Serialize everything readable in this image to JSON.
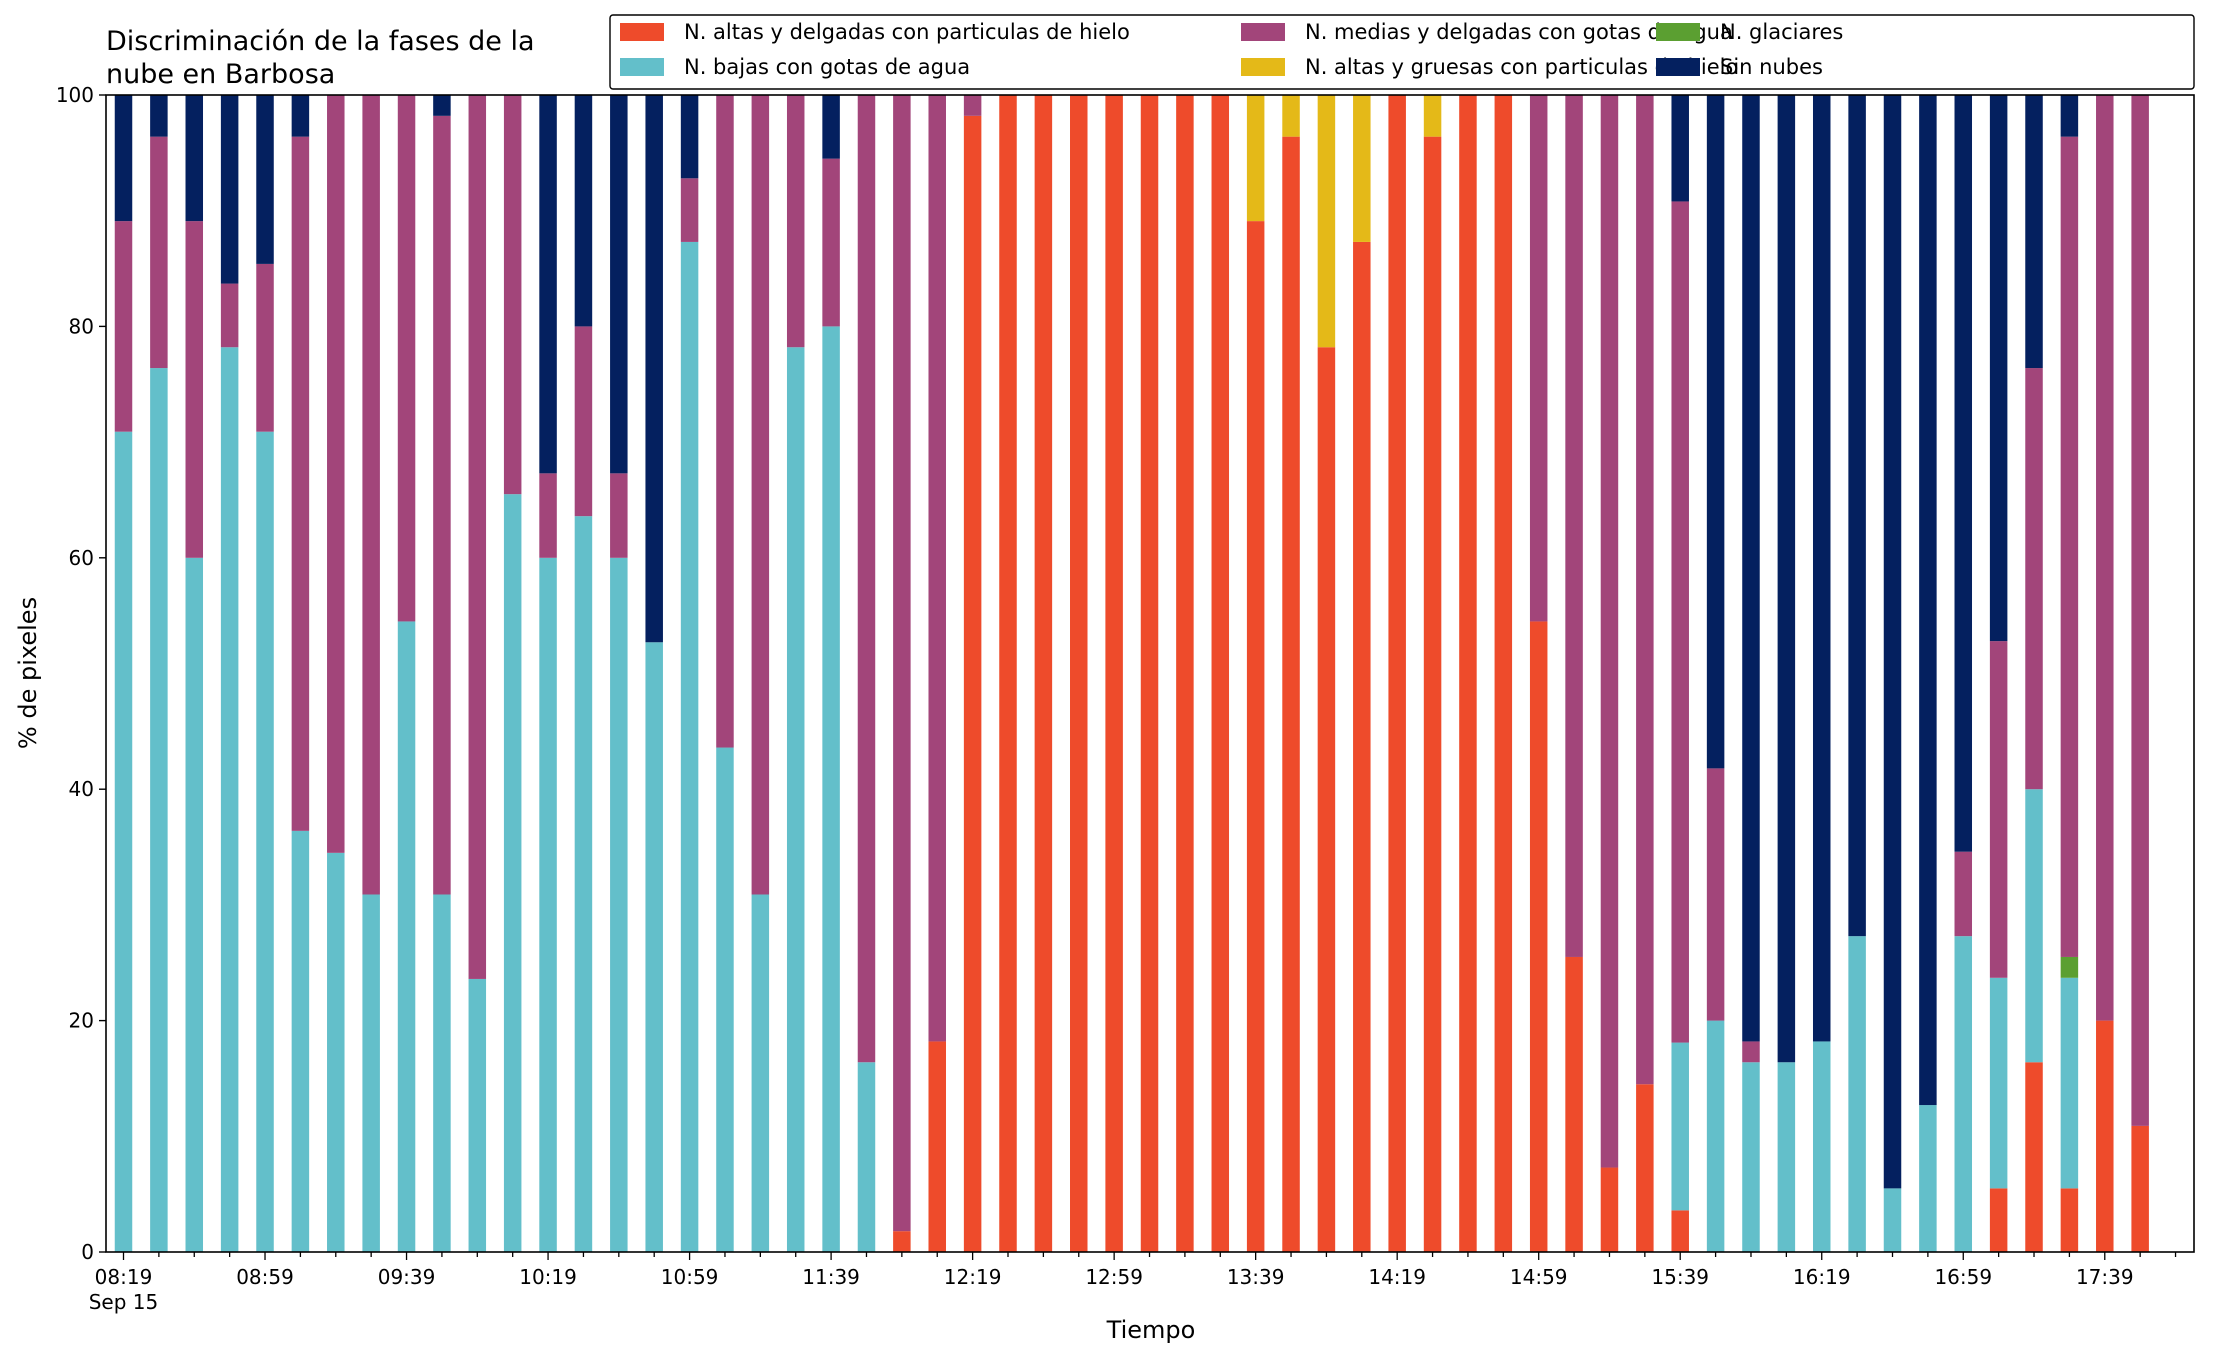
{
  "chart_data": {
    "type": "bar",
    "stacked": true,
    "title_lines": [
      "Discriminación de la fases de la",
      "nube en Barbosa"
    ],
    "xlabel": "Tiempo",
    "ylabel": "% de pixeles",
    "ylim": [
      0,
      100
    ],
    "yticks": [
      "0",
      "20",
      "40",
      "60",
      "80",
      "100"
    ],
    "grid": false,
    "legend_position": "top-right",
    "x_tick_labels": [
      "08:19",
      "08:59",
      "09:39",
      "10:19",
      "10:59",
      "11:39",
      "12:19",
      "12:59",
      "13:39",
      "14:19",
      "14:59",
      "15:39",
      "16:19",
      "16:59",
      "17:39"
    ],
    "x_tick_sublabel": "Sep 15",
    "categories": [
      "08:19",
      "08:29",
      "08:39",
      "08:49",
      "08:59",
      "09:09",
      "09:19",
      "09:29",
      "09:39",
      "09:49",
      "09:59",
      "10:09",
      "10:19",
      "10:29",
      "10:39",
      "10:49",
      "10:59",
      "11:09",
      "11:19",
      "11:29",
      "11:39",
      "11:49",
      "11:59",
      "12:09",
      "12:19",
      "12:29",
      "12:39",
      "12:49",
      "12:59",
      "13:09",
      "13:19",
      "13:29",
      "13:39",
      "13:49",
      "13:59",
      "14:09",
      "14:19",
      "14:29",
      "14:39",
      "14:49",
      "14:59",
      "15:09",
      "15:19",
      "15:29",
      "15:39",
      "15:49",
      "15:59",
      "16:09",
      "16:19",
      "16:29",
      "16:39",
      "16:49",
      "16:59",
      "17:09",
      "17:19",
      "17:29",
      "17:39",
      "17:49"
    ],
    "legend_order": [
      0,
      2,
      4,
      1,
      3,
      5
    ],
    "series": [
      {
        "name": "N. altas y delgadas con particulas de hielo",
        "color": "#ee4b2b",
        "values": [
          0,
          0,
          0,
          0,
          0,
          0,
          0,
          0,
          0,
          0,
          0,
          0,
          0,
          0,
          0,
          0,
          0,
          0,
          0,
          0,
          0,
          0,
          1.8,
          18.2,
          98.2,
          100,
          100,
          100,
          100,
          100,
          100,
          100,
          89.1,
          96.4,
          78.2,
          87.3,
          100,
          96.4,
          100,
          100,
          54.5,
          25.5,
          7.3,
          14.5,
          3.6,
          0,
          0,
          0,
          0,
          0,
          0,
          0,
          0,
          5.5,
          16.4,
          5.5,
          20,
          10.9
        ]
      },
      {
        "name": "N. altas y gruesas con particulas de hielo",
        "color": "#e4b918",
        "values": [
          0,
          0,
          0,
          0,
          0,
          0,
          0,
          0,
          0,
          0,
          0,
          0,
          0,
          0,
          0,
          0,
          0,
          0,
          0,
          0,
          0,
          0,
          0,
          0,
          0,
          0,
          0,
          0,
          0,
          0,
          0,
          0,
          10.9,
          3.6,
          21.8,
          12.7,
          0,
          3.6,
          0,
          0,
          0,
          0,
          0,
          0,
          0,
          0,
          0,
          0,
          0,
          0,
          0,
          0,
          0,
          0,
          0,
          0,
          0,
          0
        ]
      },
      {
        "name": "N. bajas con gotas de agua",
        "color": "#63bfca",
        "values": [
          70.9,
          76.4,
          60,
          78.2,
          70.9,
          36.4,
          34.5,
          30.9,
          54.5,
          30.9,
          23.6,
          65.5,
          60,
          63.6,
          60,
          52.7,
          87.3,
          43.6,
          30.9,
          78.2,
          80,
          16.4,
          0,
          0,
          0,
          0,
          0,
          0,
          0,
          0,
          0,
          0,
          0,
          0,
          0,
          0,
          0,
          0,
          0,
          0,
          0,
          0,
          0,
          0,
          14.5,
          20,
          16.4,
          16.4,
          18.2,
          27.3,
          5.5,
          12.7,
          27.3,
          18.2,
          23.6,
          18.2,
          0,
          0
        ]
      },
      {
        "name": "N. glaciares",
        "color": "#5b9f31",
        "values": [
          0,
          0,
          0,
          0,
          0,
          0,
          0,
          0,
          0,
          0,
          0,
          0,
          0,
          0,
          0,
          0,
          0,
          0,
          0,
          0,
          0,
          0,
          0,
          0,
          0,
          0,
          0,
          0,
          0,
          0,
          0,
          0,
          0,
          0,
          0,
          0,
          0,
          0,
          0,
          0,
          0,
          0,
          0,
          0,
          0,
          0,
          0,
          0,
          0,
          0,
          0,
          0,
          0,
          0,
          0,
          1.8,
          0,
          0
        ]
      },
      {
        "name": "N. medias y delgadas con gotas de agua",
        "color": "#a2457a",
        "values": [
          18.2,
          20,
          29.1,
          5.5,
          14.5,
          60,
          65.5,
          69.1,
          45.5,
          67.3,
          76.4,
          34.5,
          7.3,
          16.4,
          7.3,
          0,
          5.5,
          56.4,
          69.1,
          21.8,
          14.5,
          83.6,
          98.2,
          81.8,
          1.8,
          0,
          0,
          0,
          0,
          0,
          0,
          0,
          0,
          0,
          0,
          0,
          0,
          0,
          0,
          0,
          45.5,
          74.5,
          92.7,
          85.5,
          72.7,
          21.8,
          1.8,
          0,
          0,
          0,
          0,
          0,
          7.3,
          29.1,
          36.4,
          70.9,
          80,
          89.1
        ]
      },
      {
        "name": "Sin nubes",
        "color": "#04205f",
        "values": [
          10.9,
          3.6,
          10.9,
          16.3,
          14.6,
          3.6,
          0,
          0,
          0,
          1.8,
          0,
          0,
          32.7,
          20,
          32.7,
          47.3,
          7.2,
          0,
          0,
          0,
          5.5,
          0,
          0,
          0,
          0,
          0,
          0,
          0,
          0,
          0,
          0,
          0,
          0,
          0,
          0,
          0,
          0,
          0,
          0,
          0,
          0,
          0,
          0,
          0,
          9.2,
          58.2,
          81.8,
          83.6,
          81.8,
          72.7,
          94.5,
          87.3,
          65.4,
          47.2,
          23.6,
          3.6,
          0,
          0
        ]
      }
    ]
  }
}
